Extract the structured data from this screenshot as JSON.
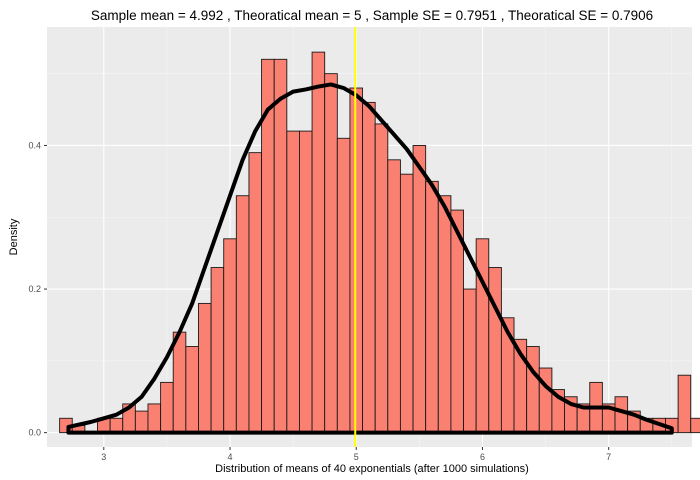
{
  "chart_data": {
    "type": "bar",
    "title": "Sample mean =  4.992 , Theoratical mean =  5 , Sample SE =  0.7951 , Theoratical SE =  0.7906",
    "xlabel": "Distribution of means of 40 exponentials (after 1000 simulations)",
    "ylabel": "Density",
    "xlim": [
      2.55,
      7.66
    ],
    "ylim": [
      -0.02,
      0.565
    ],
    "x_ticks": [
      3,
      4,
      5,
      6,
      7
    ],
    "x_tick_labels": [
      "3",
      "4",
      "5",
      "6",
      "7"
    ],
    "y_ticks": [
      0.0,
      0.2,
      0.4
    ],
    "y_tick_labels": [
      "0.0",
      "0.2",
      "0.4"
    ],
    "grid": true,
    "histogram": {
      "bin_width": 0.1,
      "first_bin_left": 2.65,
      "densities": [
        0.02,
        0.01,
        0.0,
        0.02,
        0.02,
        0.04,
        0.03,
        0.04,
        0.07,
        0.14,
        0.12,
        0.18,
        0.23,
        0.27,
        0.33,
        0.39,
        0.52,
        0.52,
        0.42,
        0.42,
        0.53,
        0.5,
        0.41,
        0.48,
        0.46,
        0.43,
        0.38,
        0.36,
        0.4,
        0.35,
        0.33,
        0.31,
        0.2,
        0.27,
        0.23,
        0.16,
        0.13,
        0.12,
        0.09,
        0.06,
        0.05,
        0.04,
        0.07,
        0.04,
        0.05,
        0.03,
        0.02,
        0.02,
        0.02,
        0.08,
        0.02,
        0.03,
        0.02,
        0.01
      ],
      "fill_color": "#FA8072",
      "border_color": "#1a1a1a"
    },
    "density_curve": {
      "x": [
        2.72,
        2.9,
        3.0,
        3.1,
        3.2,
        3.3,
        3.4,
        3.5,
        3.6,
        3.7,
        3.8,
        3.9,
        4.0,
        4.1,
        4.2,
        4.3,
        4.4,
        4.5,
        4.6,
        4.7,
        4.8,
        4.9,
        5.0,
        5.1,
        5.2,
        5.3,
        5.4,
        5.5,
        5.6,
        5.7,
        5.8,
        5.9,
        6.0,
        6.1,
        6.2,
        6.3,
        6.4,
        6.5,
        6.6,
        6.7,
        6.8,
        6.9,
        7.0,
        7.1,
        7.2,
        7.3,
        7.4,
        7.5
      ],
      "y": [
        0.008,
        0.015,
        0.02,
        0.025,
        0.035,
        0.05,
        0.075,
        0.105,
        0.14,
        0.18,
        0.23,
        0.28,
        0.33,
        0.38,
        0.42,
        0.45,
        0.465,
        0.475,
        0.478,
        0.482,
        0.485,
        0.48,
        0.47,
        0.455,
        0.435,
        0.415,
        0.395,
        0.37,
        0.345,
        0.315,
        0.28,
        0.245,
        0.21,
        0.175,
        0.14,
        0.11,
        0.085,
        0.065,
        0.05,
        0.04,
        0.035,
        0.035,
        0.035,
        0.03,
        0.025,
        0.018,
        0.012,
        0.006
      ],
      "color": "#000000"
    },
    "vertical_line": {
      "x": 4.992,
      "color": "#FFFF00"
    }
  }
}
